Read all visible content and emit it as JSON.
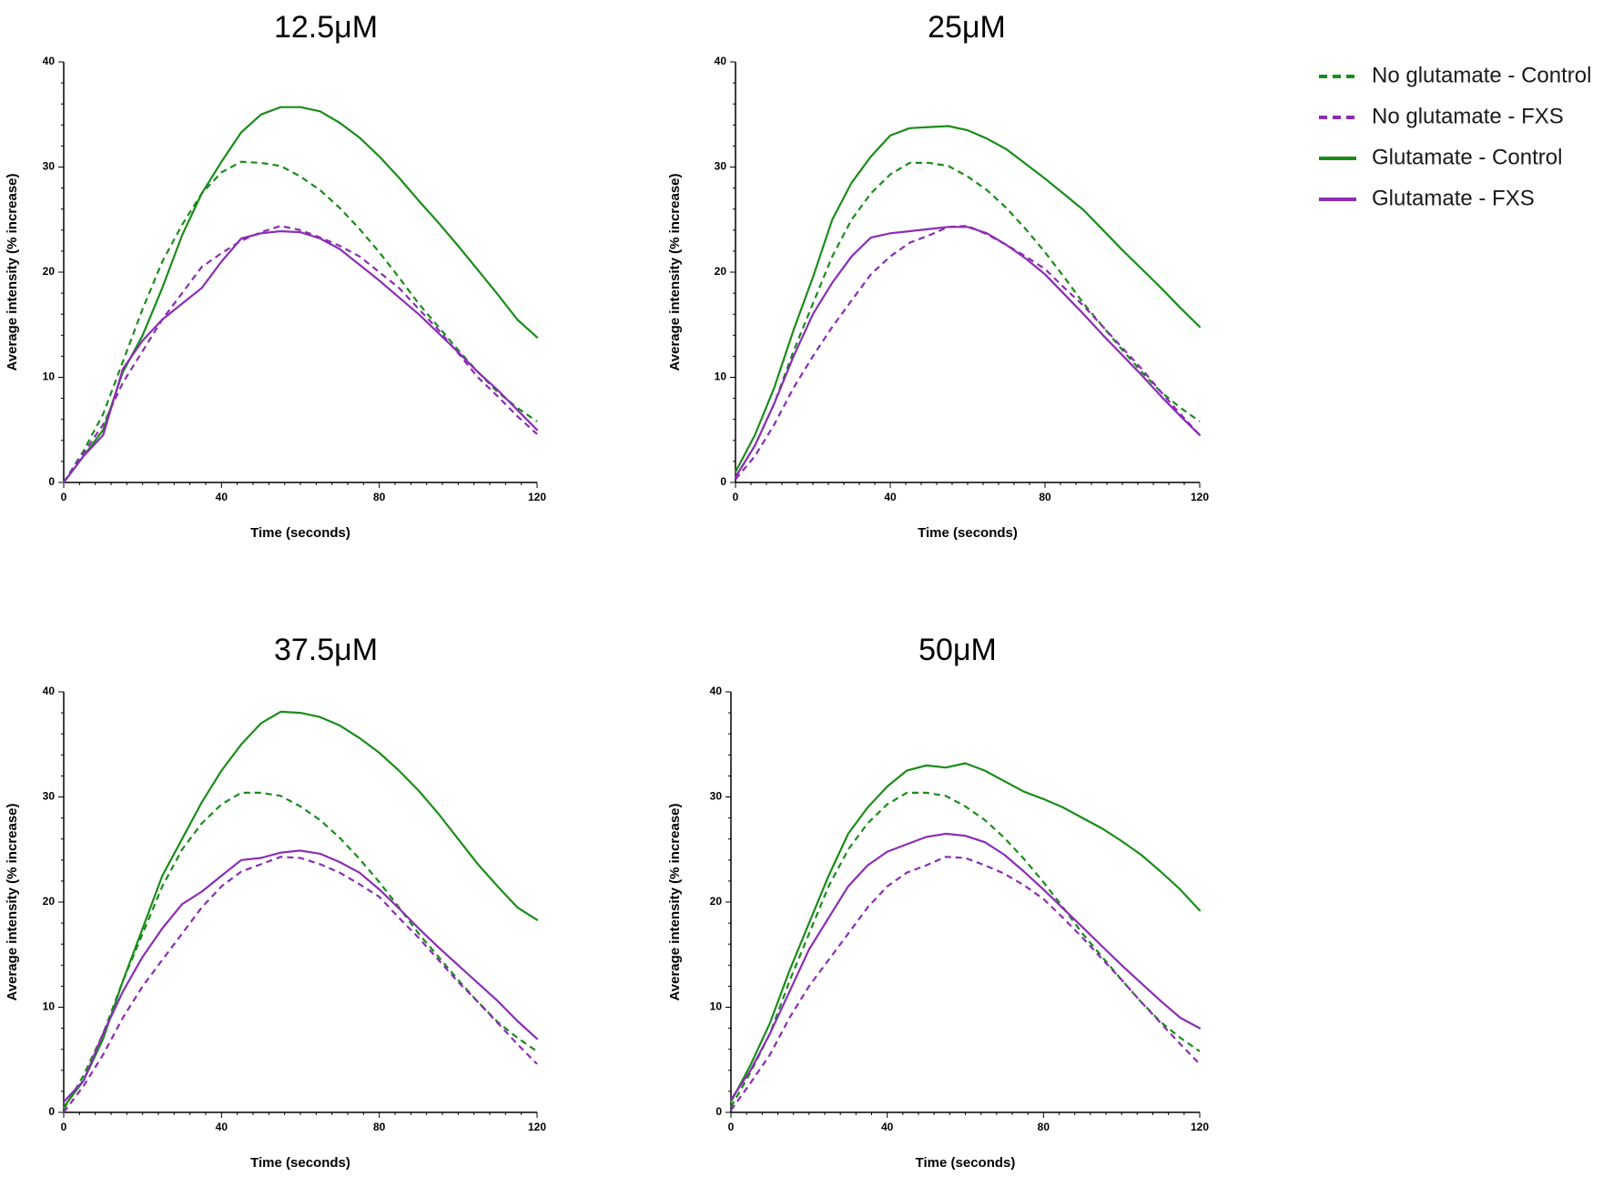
{
  "chart_data": {
    "legend": [
      {
        "label": "No glutamate - Control",
        "color": "#1a8c1a",
        "dashed": true
      },
      {
        "label": "No glutamate - FXS",
        "color": "#8a2db5",
        "dashed": true
      },
      {
        "label": "Glutamate - Control",
        "color": "#1a8c1a",
        "dashed": false
      },
      {
        "label": "Glutamate - FXS",
        "color": "#8a2db5",
        "dashed": false
      }
    ],
    "legend_position": "top-right",
    "panels": [
      {
        "type": "line",
        "title": "12.5μM",
        "xlabel": "Time (seconds)",
        "ylabel": "Average intensity (% increase)",
        "xlim": [
          0,
          120
        ],
        "ylim": [
          0,
          40
        ],
        "x_ticks": [
          "0",
          "40",
          "80",
          "120"
        ],
        "y_ticks": [
          "0",
          "10",
          "20",
          "30",
          "40"
        ],
        "x": [
          0,
          5,
          10,
          15,
          20,
          25,
          30,
          35,
          40,
          45,
          50,
          55,
          60,
          65,
          70,
          75,
          80,
          85,
          90,
          95,
          100,
          105,
          110,
          115,
          120
        ],
        "series": [
          {
            "name": "No glutamate - Control",
            "values": [
              0,
              3,
              6.5,
              11.5,
              16.5,
              21,
              24.5,
              27.5,
              29.5,
              30.5,
              30.4,
              30.1,
              29.1,
              27.8,
              26.1,
              24.1,
              21.9,
              19.5,
              17,
              14.8,
              12.6,
              10.5,
              8.6,
              7.1,
              5.8
            ]
          },
          {
            "name": "No glutamate - FXS",
            "values": [
              0,
              2.8,
              5.5,
              9.5,
              12.5,
              15.5,
              18,
              20.5,
              21.8,
              23,
              23.8,
              24.4,
              24,
              23.3,
              22.5,
              21.5,
              20,
              18.5,
              16.5,
              14.5,
              12.3,
              10,
              8.2,
              6.3,
              4.6
            ]
          },
          {
            "name": "Glutamate - Control",
            "values": [
              0,
              2.5,
              5,
              10.5,
              14,
              18.5,
              23.5,
              27.5,
              30.5,
              33.3,
              35,
              35.7,
              35.7,
              35.3,
              34.2,
              32.8,
              31,
              29,
              26.8,
              24.7,
              22.5,
              20.2,
              17.9,
              15.5,
              13.8
            ]
          },
          {
            "name": "Glutamate - FXS",
            "values": [
              0,
              2.5,
              4.5,
              10.8,
              13.5,
              15.5,
              17,
              18.5,
              21,
              23.2,
              23.7,
              23.9,
              23.8,
              23.2,
              22.2,
              20.7,
              19.2,
              17.6,
              16,
              14.2,
              12.4,
              10.5,
              8.8,
              6.9,
              5
            ]
          }
        ]
      },
      {
        "type": "line",
        "title": "25μM",
        "xlabel": "Time (seconds)",
        "ylabel": "Average intensity (% increase)",
        "xlim": [
          0,
          120
        ],
        "ylim": [
          0,
          40
        ],
        "x_ticks": [
          "0",
          "40",
          "80",
          "120"
        ],
        "y_ticks": [
          "0",
          "10",
          "20",
          "30",
          "40"
        ],
        "x": [
          0,
          5,
          10,
          15,
          20,
          25,
          30,
          35,
          40,
          45,
          50,
          55,
          60,
          65,
          70,
          75,
          80,
          85,
          90,
          95,
          100,
          105,
          110,
          115,
          120
        ],
        "series": [
          {
            "name": "No glutamate - Control",
            "values": [
              0.5,
              3.5,
              7.5,
              12.5,
              17,
              21.5,
              25,
              27.5,
              29.3,
              30.4,
              30.4,
              30.1,
              29.1,
              27.8,
              26.1,
              24.1,
              21.9,
              19.5,
              17,
              14.8,
              12.6,
              10.5,
              8.6,
              7.1,
              5.8
            ]
          },
          {
            "name": "No glutamate - FXS",
            "values": [
              0.3,
              2.5,
              5.5,
              9,
              12,
              14.8,
              17.3,
              19.8,
              21.5,
              22.8,
              23.5,
              24.3,
              24.4,
              23.6,
              22.6,
              21.5,
              20.3,
              18.5,
              16.8,
              14.8,
              12.8,
              10.8,
              8.6,
              6.5,
              4.5
            ]
          },
          {
            "name": "Glutamate - Control",
            "values": [
              1,
              4.5,
              9,
              14.5,
              19.5,
              25,
              28.5,
              31,
              33,
              33.7,
              33.8,
              33.9,
              33.5,
              32.7,
              31.7,
              30.3,
              28.9,
              27.4,
              25.9,
              24,
              22.1,
              20.3,
              18.5,
              16.6,
              14.8
            ]
          },
          {
            "name": "Glutamate - FXS",
            "values": [
              0.5,
              3.5,
              7.5,
              12,
              16,
              19,
              21.5,
              23.3,
              23.7,
              23.9,
              24.1,
              24.3,
              24.3,
              23.7,
              22.6,
              21.3,
              19.8,
              17.9,
              16,
              14,
              12.1,
              10.2,
              8.2,
              6.3,
              4.5
            ]
          }
        ]
      },
      {
        "type": "line",
        "title": "37.5μM",
        "xlabel": "Time (seconds)",
        "ylabel": "Average intensity (% increase)",
        "xlim": [
          0,
          120
        ],
        "ylim": [
          0,
          40
        ],
        "x_ticks": [
          "0",
          "40",
          "80",
          "120"
        ],
        "y_ticks": [
          "0",
          "10",
          "20",
          "30",
          "40"
        ],
        "x": [
          0,
          5,
          10,
          15,
          20,
          25,
          30,
          35,
          40,
          45,
          50,
          55,
          60,
          65,
          70,
          75,
          80,
          85,
          90,
          95,
          100,
          105,
          110,
          115,
          120
        ],
        "series": [
          {
            "name": "No glutamate - Control",
            "values": [
              0.3,
              3.5,
              7.5,
              12.5,
              17,
              21.5,
              25,
              27.5,
              29.3,
              30.4,
              30.4,
              30.1,
              29.1,
              27.8,
              26.1,
              24.1,
              21.9,
              19.5,
              17,
              14.8,
              12.6,
              10.5,
              8.6,
              7.1,
              5.8
            ]
          },
          {
            "name": "No glutamate - FXS",
            "values": [
              0,
              2.5,
              5.5,
              9,
              12,
              14.5,
              17,
              19.5,
              21.5,
              22.9,
              23.6,
              24.3,
              24.2,
              23.6,
              22.8,
              21.7,
              20.5,
              18.5,
              16.6,
              14.5,
              12.4,
              10.5,
              8.5,
              6.5,
              4.6
            ]
          },
          {
            "name": "Glutamate - Control",
            "values": [
              0.5,
              3,
              7,
              12.5,
              17.5,
              22.5,
              26,
              29.5,
              32.5,
              35,
              37,
              38.1,
              38,
              37.6,
              36.8,
              35.6,
              34.2,
              32.5,
              30.6,
              28.4,
              26,
              23.6,
              21.5,
              19.5,
              18.3
            ]
          },
          {
            "name": "Glutamate - FXS",
            "values": [
              1,
              3,
              7.5,
              11.5,
              14.8,
              17.5,
              19.8,
              21,
              22.5,
              24,
              24.2,
              24.7,
              24.9,
              24.6,
              23.8,
              22.8,
              21.2,
              19.4,
              17.5,
              15.7,
              14,
              12.3,
              10.6,
              8.7,
              7
            ]
          }
        ]
      },
      {
        "type": "line",
        "title": "50μM",
        "xlabel": "Time (seconds)",
        "ylabel": "Average intensity (% increase)",
        "xlim": [
          0,
          120
        ],
        "ylim": [
          0,
          40
        ],
        "x_ticks": [
          "0",
          "40",
          "80",
          "120"
        ],
        "y_ticks": [
          "0",
          "10",
          "20",
          "30",
          "40"
        ],
        "x": [
          0,
          5,
          10,
          15,
          20,
          25,
          30,
          35,
          40,
          45,
          50,
          55,
          60,
          65,
          70,
          75,
          80,
          85,
          90,
          95,
          100,
          105,
          110,
          115,
          120
        ],
        "series": [
          {
            "name": "No glutamate - Control",
            "values": [
              0.5,
              3.8,
              7.5,
              12.5,
              17,
              21.5,
              25,
              27.5,
              29.3,
              30.4,
              30.4,
              30.1,
              29.1,
              27.8,
              26.1,
              24.1,
              21.9,
              19.5,
              17,
              14.8,
              12.6,
              10.5,
              8.6,
              7.1,
              5.8
            ]
          },
          {
            "name": "No glutamate - FXS",
            "values": [
              0.2,
              2.8,
              5.5,
              9,
              12,
              14.5,
              17,
              19.5,
              21.5,
              22.8,
              23.5,
              24.3,
              24.2,
              23.5,
              22.7,
              21.6,
              20.3,
              18.5,
              16.6,
              14.6,
              12.6,
              10.5,
              8.5,
              6.5,
              4.6
            ]
          },
          {
            "name": "Glutamate - Control",
            "values": [
              1,
              4.5,
              8.5,
              13.5,
              18,
              22.5,
              26.5,
              29,
              31,
              32.5,
              33,
              32.8,
              33.2,
              32.5,
              31.5,
              30.5,
              29.8,
              29,
              28,
              27,
              25.8,
              24.5,
              22.9,
              21.2,
              19.2
            ]
          },
          {
            "name": "Glutamate - FXS",
            "values": [
              1.2,
              4,
              7.5,
              11.5,
              15.5,
              18.5,
              21.5,
              23.5,
              24.8,
              25.5,
              26.2,
              26.5,
              26.3,
              25.7,
              24.5,
              22.9,
              21.2,
              19.4,
              17.6,
              15.8,
              14,
              12.3,
              10.6,
              9,
              8
            ]
          }
        ]
      }
    ]
  }
}
